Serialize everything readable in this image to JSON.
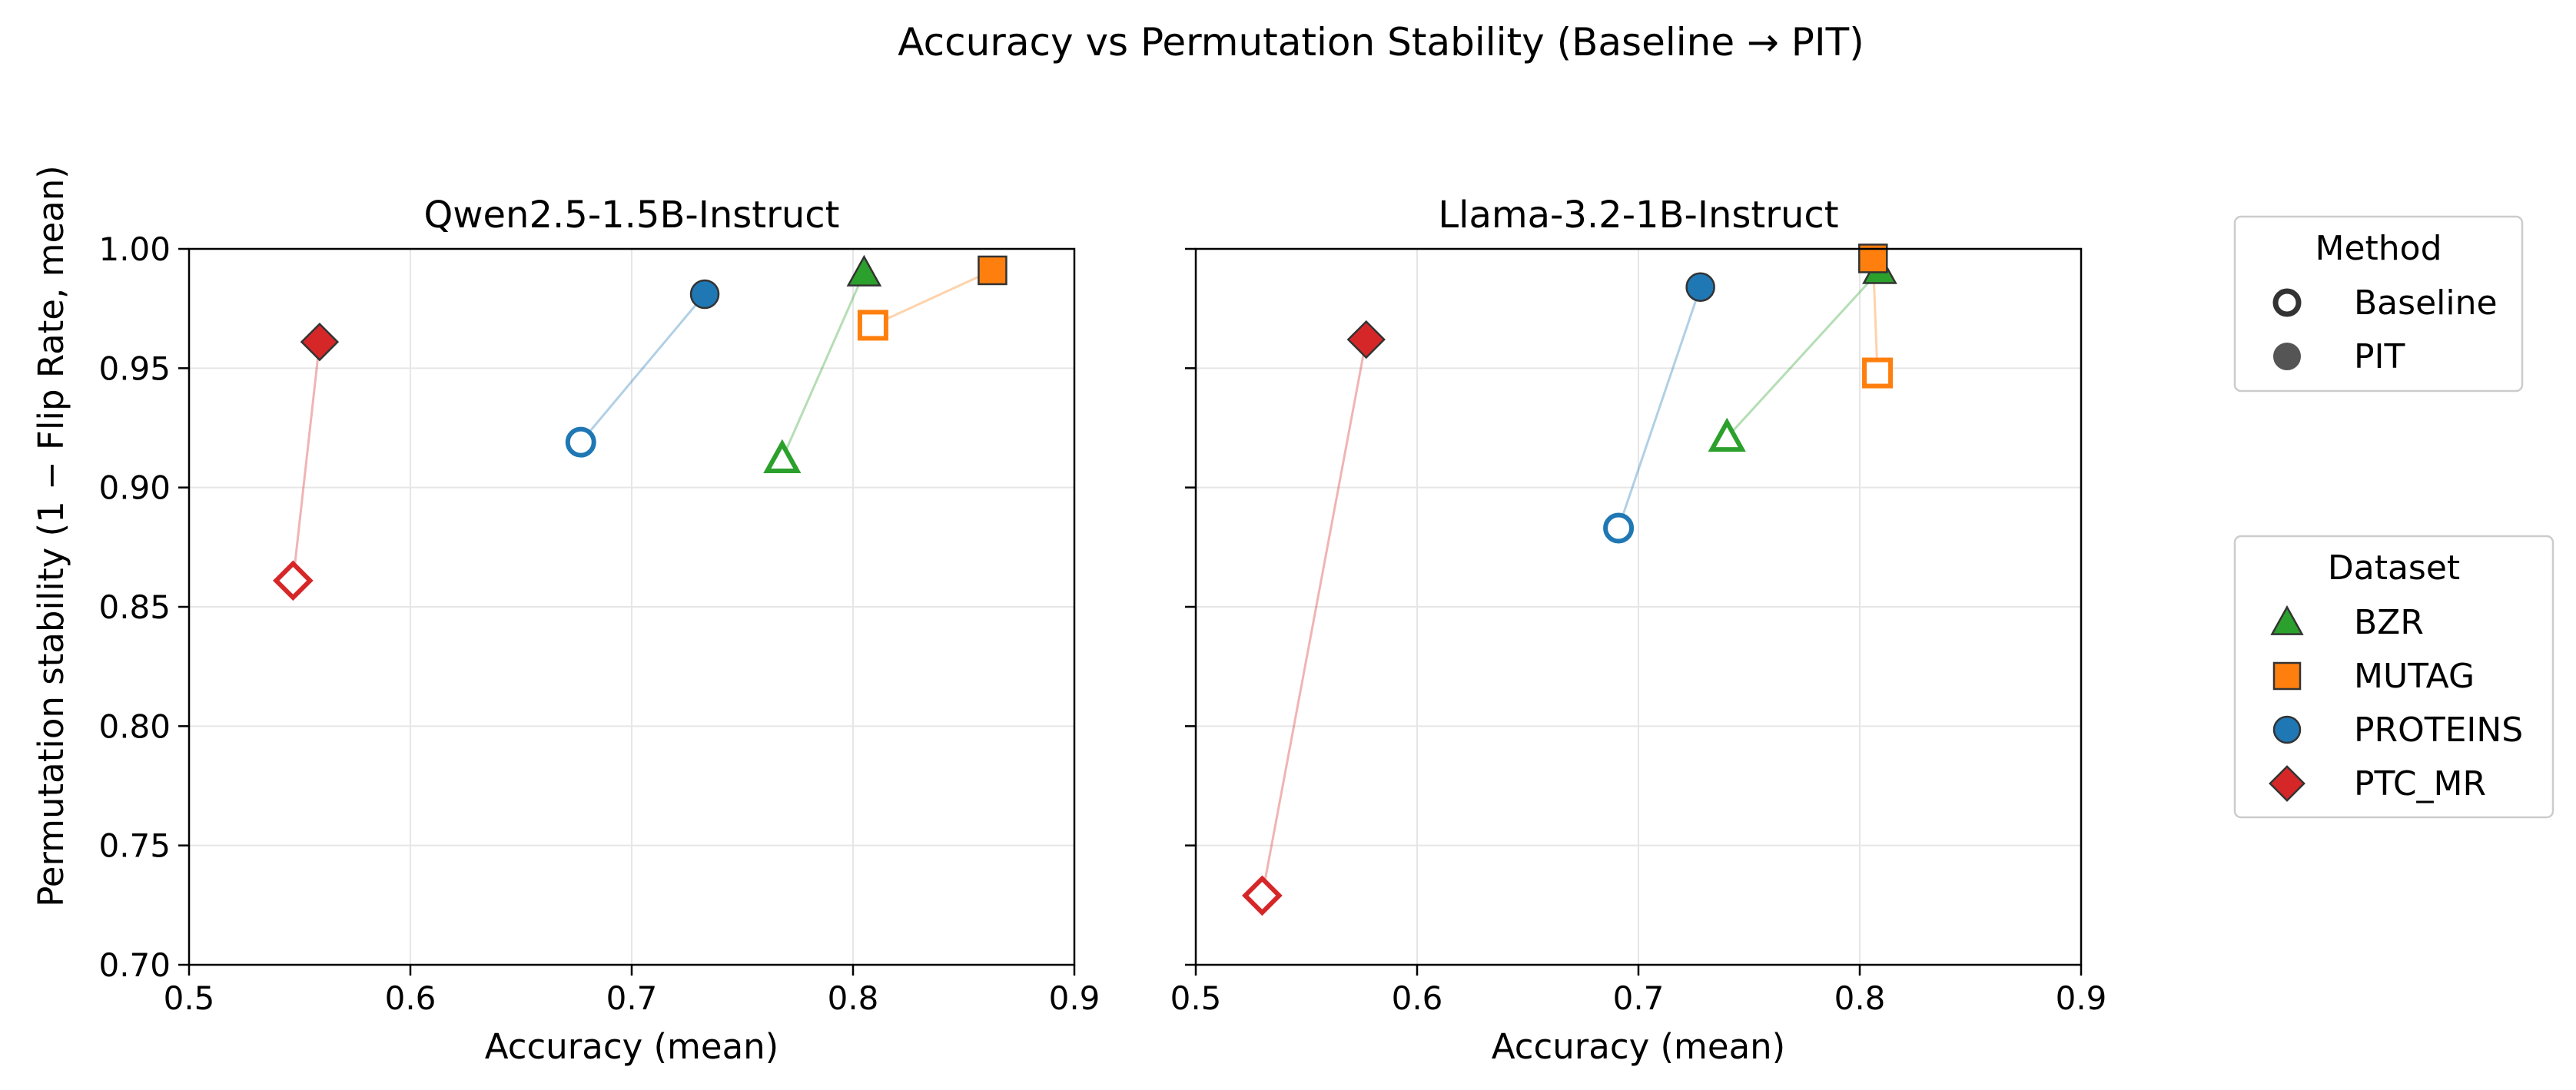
{
  "figure": {
    "suptitle": "Accuracy vs Permutation Stability (Baseline → PIT)",
    "ylabel": "Permutation stability (1 − Flip Rate, mean)"
  },
  "legend_method": {
    "title": "Method",
    "items": [
      {
        "label": "Baseline",
        "style": "hollow"
      },
      {
        "label": "PIT",
        "style": "filled"
      }
    ]
  },
  "legend_dataset": {
    "title": "Dataset",
    "items": [
      {
        "label": "BZR",
        "marker": "triangle",
        "color": "#2ca02c"
      },
      {
        "label": "MUTAG",
        "marker": "square",
        "color": "#ff7f0e"
      },
      {
        "label": "PROTEINS",
        "marker": "circle",
        "color": "#1f77b4"
      },
      {
        "label": "PTC_MR",
        "marker": "diamond",
        "color": "#d62728"
      }
    ]
  },
  "chart_data": [
    {
      "type": "scatter",
      "title": "Qwen2.5-1.5B-Instruct",
      "xlabel": "Accuracy (mean)",
      "ylabel": "Permutation stability (1 − Flip Rate, mean)",
      "xlim": [
        0.5,
        0.9
      ],
      "ylim": [
        0.7,
        1.0
      ],
      "xticks": [
        "0.5",
        "0.6",
        "0.7",
        "0.8",
        "0.9"
      ],
      "yticks": [
        "0.70",
        "0.75",
        "0.80",
        "0.85",
        "0.90",
        "0.95",
        "1.00"
      ],
      "grid": true,
      "series": [
        {
          "name": "BZR",
          "baseline": [
            0.768,
            0.912
          ],
          "pit": [
            0.805,
            0.99
          ]
        },
        {
          "name": "MUTAG",
          "baseline": [
            0.809,
            0.968
          ],
          "pit": [
            0.863,
            0.991
          ]
        },
        {
          "name": "PROTEINS",
          "baseline": [
            0.677,
            0.919
          ],
          "pit": [
            0.733,
            0.981
          ]
        },
        {
          "name": "PTC_MR",
          "baseline": [
            0.547,
            0.861
          ],
          "pit": [
            0.559,
            0.961
          ]
        }
      ]
    },
    {
      "type": "scatter",
      "title": "Llama-3.2-1B-Instruct",
      "xlabel": "Accuracy (mean)",
      "xlim": [
        0.5,
        0.9
      ],
      "ylim": [
        0.7,
        1.0
      ],
      "xticks": [
        "0.5",
        "0.6",
        "0.7",
        "0.8",
        "0.9"
      ],
      "grid": true,
      "series": [
        {
          "name": "BZR",
          "baseline": [
            0.74,
            0.921
          ],
          "pit": [
            0.809,
            0.991
          ]
        },
        {
          "name": "MUTAG",
          "baseline": [
            0.808,
            0.948
          ],
          "pit": [
            0.806,
            0.996
          ]
        },
        {
          "name": "PROTEINS",
          "baseline": [
            0.691,
            0.883
          ],
          "pit": [
            0.728,
            0.984
          ]
        },
        {
          "name": "PTC_MR",
          "baseline": [
            0.53,
            0.729
          ],
          "pit": [
            0.577,
            0.962
          ]
        }
      ]
    }
  ]
}
